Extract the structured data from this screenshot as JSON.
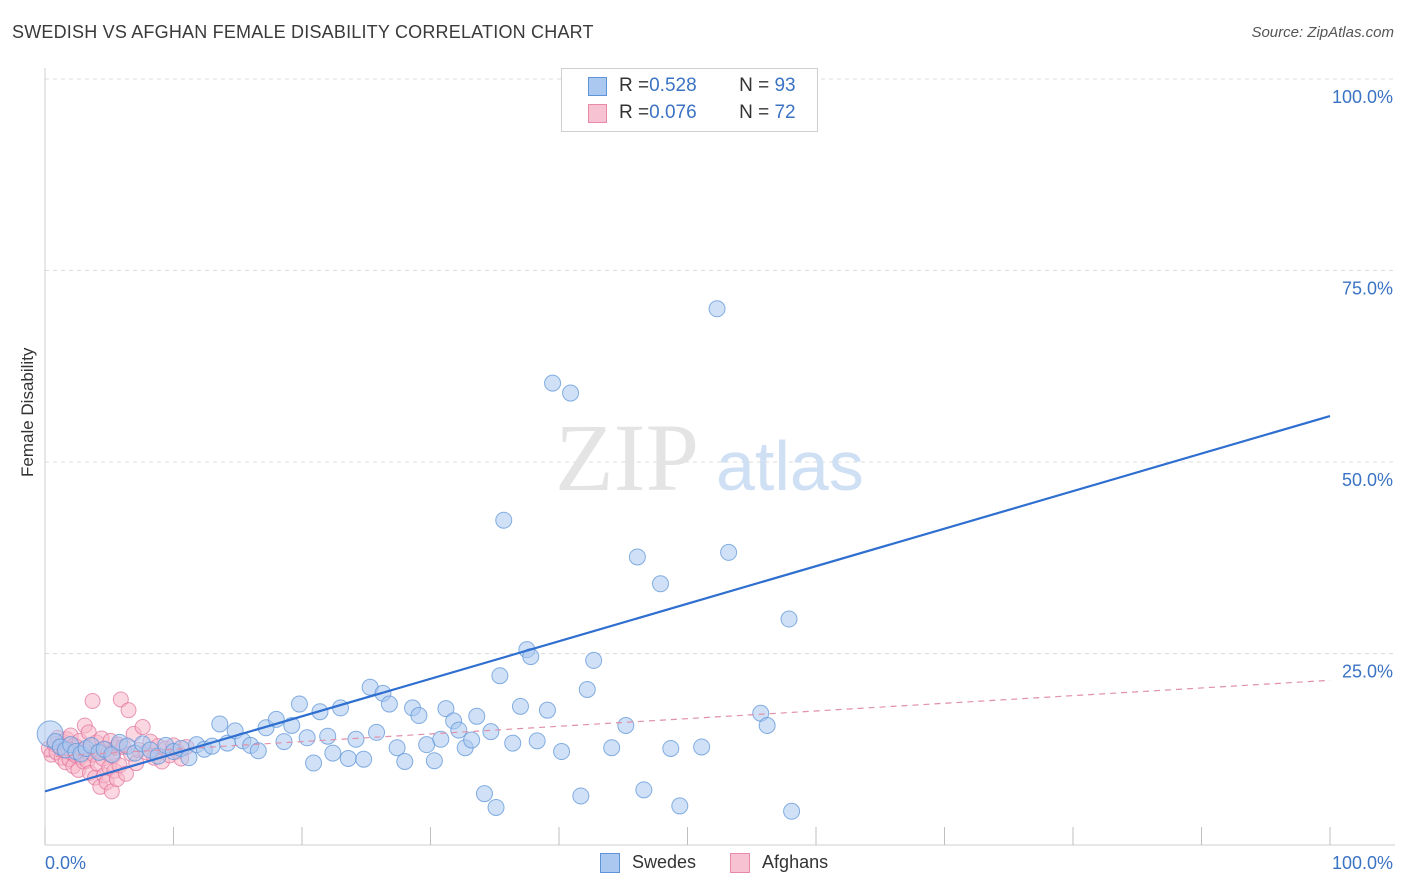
{
  "header": {
    "title": "SWEDISH VS AFGHAN FEMALE DISABILITY CORRELATION CHART",
    "source": "Source: ZipAtlas.com"
  },
  "watermark": {
    "zip": "ZIP",
    "atlas": "atlas"
  },
  "colors": {
    "swedes_fill": "#aac8f0",
    "swedes_stroke": "#5f95d8",
    "swedes_line": "#2f6fd0",
    "afghans_fill": "#f7b6c8",
    "afghans_stroke": "#e0709a",
    "afghans_line": "#e090a8",
    "value_text": "#3b73c4"
  },
  "legend": {
    "rows": [
      {
        "r_label": "R = ",
        "r_value": "0.528",
        "n_label": "N = ",
        "n_value": "93"
      },
      {
        "r_label": "R = ",
        "r_value": "0.076",
        "n_label": "N = ",
        "n_value": "72"
      }
    ]
  },
  "bottom_legend": {
    "swedes": "Swedes",
    "afghans": "Afghans"
  },
  "chart_data": {
    "type": "scatter",
    "title": "SWEDISH VS AFGHAN FEMALE DISABILITY CORRELATION CHART",
    "xlabel": "",
    "ylabel": "Female Disability",
    "xlim": [
      0,
      100
    ],
    "ylim": [
      0,
      100
    ],
    "x_tick_labels": [
      "0.0%",
      "100.0%"
    ],
    "y_ticks": [
      25,
      50,
      75,
      100
    ],
    "y_tick_labels": [
      "25.0%",
      "50.0%",
      "75.0%",
      "100.0%"
    ],
    "grid": true,
    "series": [
      {
        "name": "Swedes",
        "r": 0.528,
        "n": 93,
        "trend": {
          "x": [
            0,
            100
          ],
          "y": [
            7.0,
            56.0
          ]
        },
        "points": [
          [
            0.4,
            14.5
          ],
          [
            0.8,
            13.5
          ],
          [
            1.2,
            12.8
          ],
          [
            1.6,
            12.4
          ],
          [
            2.0,
            13.1
          ],
          [
            2.4,
            12.2
          ],
          [
            2.8,
            11.9
          ],
          [
            3.2,
            12.6
          ],
          [
            3.6,
            13.0
          ],
          [
            4.2,
            12.1
          ],
          [
            4.6,
            12.5
          ],
          [
            5.2,
            11.8
          ],
          [
            5.8,
            13.4
          ],
          [
            6.4,
            12.9
          ],
          [
            7.0,
            12.0
          ],
          [
            7.6,
            13.2
          ],
          [
            8.2,
            12.4
          ],
          [
            8.8,
            11.6
          ],
          [
            9.4,
            13.0
          ],
          [
            10.0,
            12.2
          ],
          [
            10.6,
            12.6
          ],
          [
            11.2,
            11.4
          ],
          [
            11.8,
            13.1
          ],
          [
            12.4,
            12.5
          ],
          [
            13.0,
            12.9
          ],
          [
            13.6,
            15.8
          ],
          [
            14.2,
            13.3
          ],
          [
            14.8,
            14.9
          ],
          [
            15.4,
            13.6
          ],
          [
            16.0,
            13.0
          ],
          [
            16.6,
            12.3
          ],
          [
            17.2,
            15.3
          ],
          [
            18.0,
            16.4
          ],
          [
            18.6,
            13.5
          ],
          [
            19.2,
            15.6
          ],
          [
            19.8,
            18.4
          ],
          [
            20.4,
            14.0
          ],
          [
            20.9,
            10.7
          ],
          [
            21.4,
            17.4
          ],
          [
            22.0,
            14.2
          ],
          [
            22.4,
            12.0
          ],
          [
            23.0,
            17.9
          ],
          [
            23.6,
            11.3
          ],
          [
            24.2,
            13.8
          ],
          [
            24.8,
            11.2
          ],
          [
            25.3,
            20.6
          ],
          [
            25.8,
            14.7
          ],
          [
            26.3,
            19.8
          ],
          [
            26.8,
            18.4
          ],
          [
            27.4,
            12.7
          ],
          [
            28.0,
            10.9
          ],
          [
            28.6,
            17.9
          ],
          [
            29.1,
            16.9
          ],
          [
            29.7,
            13.1
          ],
          [
            30.3,
            11.0
          ],
          [
            30.8,
            13.8
          ],
          [
            31.2,
            17.8
          ],
          [
            31.8,
            16.2
          ],
          [
            32.2,
            15.0
          ],
          [
            32.7,
            12.7
          ],
          [
            33.2,
            13.7
          ],
          [
            33.6,
            16.8
          ],
          [
            34.2,
            6.7
          ],
          [
            34.7,
            14.8
          ],
          [
            35.1,
            4.9
          ],
          [
            35.4,
            22.1
          ],
          [
            35.7,
            42.4
          ],
          [
            36.4,
            13.3
          ],
          [
            37.0,
            18.1
          ],
          [
            37.5,
            25.5
          ],
          [
            37.8,
            24.6
          ],
          [
            38.3,
            13.6
          ],
          [
            39.1,
            17.6
          ],
          [
            39.5,
            60.3
          ],
          [
            40.2,
            12.2
          ],
          [
            40.9,
            59.0
          ],
          [
            41.7,
            6.4
          ],
          [
            42.2,
            20.3
          ],
          [
            42.7,
            24.1
          ],
          [
            44.1,
            12.7
          ],
          [
            45.2,
            15.6
          ],
          [
            46.1,
            37.6
          ],
          [
            46.6,
            7.2
          ],
          [
            47.9,
            34.1
          ],
          [
            48.7,
            12.6
          ],
          [
            49.4,
            5.1
          ],
          [
            51.1,
            12.8
          ],
          [
            52.3,
            70.0
          ],
          [
            53.2,
            38.2
          ],
          [
            55.7,
            17.2
          ],
          [
            56.2,
            15.6
          ],
          [
            57.9,
            29.5
          ],
          [
            58.1,
            4.4
          ]
        ]
      },
      {
        "name": "Afghans",
        "r": 0.076,
        "n": 72,
        "trend": {
          "x": [
            0,
            100
          ],
          "y": [
            11.5,
            21.5
          ]
        },
        "points": [
          [
            0.3,
            12.6
          ],
          [
            0.5,
            11.8
          ],
          [
            0.7,
            13.2
          ],
          [
            0.9,
            12.1
          ],
          [
            1.0,
            14.0
          ],
          [
            1.1,
            12.9
          ],
          [
            1.3,
            11.4
          ],
          [
            1.4,
            13.5
          ],
          [
            1.5,
            12.3
          ],
          [
            1.6,
            10.8
          ],
          [
            1.7,
            13.8
          ],
          [
            1.8,
            12.6
          ],
          [
            1.9,
            11.2
          ],
          [
            2.0,
            14.3
          ],
          [
            2.1,
            12.0
          ],
          [
            2.2,
            10.3
          ],
          [
            2.3,
            13.0
          ],
          [
            2.4,
            11.7
          ],
          [
            2.5,
            12.8
          ],
          [
            2.6,
            9.8
          ],
          [
            2.7,
            13.6
          ],
          [
            2.8,
            11.5
          ],
          [
            2.9,
            12.4
          ],
          [
            3.0,
            10.9
          ],
          [
            3.1,
            15.6
          ],
          [
            3.2,
            12.2
          ],
          [
            3.3,
            11.0
          ],
          [
            3.4,
            14.7
          ],
          [
            3.5,
            9.4
          ],
          [
            3.6,
            12.9
          ],
          [
            3.7,
            18.8
          ],
          [
            3.8,
            11.8
          ],
          [
            3.9,
            8.8
          ],
          [
            4.0,
            13.4
          ],
          [
            4.1,
            10.6
          ],
          [
            4.2,
            12.3
          ],
          [
            4.3,
            7.6
          ],
          [
            4.4,
            13.9
          ],
          [
            4.5,
            11.3
          ],
          [
            4.6,
            9.1
          ],
          [
            4.7,
            12.5
          ],
          [
            4.8,
            8.2
          ],
          [
            4.9,
            12.0
          ],
          [
            5.0,
            10.1
          ],
          [
            5.1,
            13.6
          ],
          [
            5.2,
            7.0
          ],
          [
            5.3,
            11.6
          ],
          [
            5.4,
            9.7
          ],
          [
            5.5,
            12.7
          ],
          [
            5.6,
            8.6
          ],
          [
            5.7,
            13.1
          ],
          [
            5.8,
            10.4
          ],
          [
            5.9,
            19.0
          ],
          [
            6.1,
            12.8
          ],
          [
            6.3,
            9.3
          ],
          [
            6.5,
            17.6
          ],
          [
            6.7,
            11.9
          ],
          [
            6.9,
            14.5
          ],
          [
            7.1,
            10.7
          ],
          [
            7.3,
            12.4
          ],
          [
            7.6,
            15.4
          ],
          [
            7.9,
            12.1
          ],
          [
            8.2,
            13.5
          ],
          [
            8.5,
            11.4
          ],
          [
            8.8,
            12.9
          ],
          [
            9.1,
            10.9
          ],
          [
            9.4,
            12.6
          ],
          [
            9.7,
            11.7
          ],
          [
            10.0,
            13.0
          ],
          [
            10.3,
            12.2
          ],
          [
            10.6,
            11.3
          ],
          [
            11.0,
            12.8
          ]
        ]
      }
    ]
  }
}
